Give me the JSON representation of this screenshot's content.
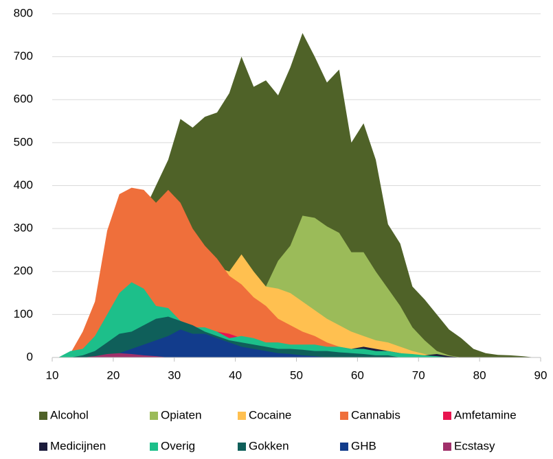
{
  "chart_data": {
    "type": "area",
    "x": [
      11,
      13,
      15,
      17,
      19,
      21,
      23,
      25,
      27,
      29,
      31,
      33,
      35,
      37,
      39,
      41,
      43,
      45,
      47,
      49,
      51,
      53,
      55,
      57,
      59,
      61,
      63,
      65,
      67,
      69,
      71,
      73,
      75,
      77,
      79,
      81,
      83,
      85,
      87,
      89
    ],
    "series": [
      {
        "name": "Alcohol",
        "color": "#4f6228",
        "values": [
          0,
          10,
          40,
          100,
          170,
          230,
          290,
          340,
          400,
          460,
          555,
          535,
          560,
          570,
          615,
          700,
          630,
          645,
          610,
          675,
          755,
          700,
          640,
          670,
          500,
          545,
          460,
          310,
          265,
          165,
          135,
          100,
          65,
          45,
          20,
          10,
          6,
          5,
          3,
          0
        ]
      },
      {
        "name": "Opiaten",
        "color": "#9bbb59",
        "values": [
          0,
          0,
          0,
          0,
          0,
          0,
          0,
          0,
          0,
          0,
          0,
          0,
          0,
          150,
          150,
          160,
          160,
          165,
          225,
          260,
          330,
          325,
          305,
          290,
          245,
          245,
          200,
          160,
          120,
          70,
          40,
          15,
          5,
          0,
          0,
          0,
          0,
          0,
          0,
          0
        ]
      },
      {
        "name": "Cocaine",
        "color": "#ffc050",
        "values": [
          0,
          0,
          0,
          0,
          0,
          80,
          100,
          110,
          120,
          130,
          140,
          150,
          250,
          210,
          200,
          240,
          200,
          165,
          160,
          150,
          130,
          110,
          90,
          75,
          60,
          50,
          40,
          35,
          25,
          15,
          8,
          3,
          0,
          0,
          0,
          0,
          0,
          0,
          0,
          0
        ]
      },
      {
        "name": "Cannabis",
        "color": "#ef6f3b",
        "values": [
          0,
          10,
          60,
          130,
          295,
          380,
          395,
          390,
          360,
          390,
          360,
          300,
          260,
          230,
          190,
          170,
          140,
          120,
          90,
          75,
          60,
          50,
          35,
          25,
          20,
          15,
          10,
          5,
          5,
          0,
          0,
          0,
          0,
          0,
          0,
          0,
          0,
          0,
          0,
          0
        ]
      },
      {
        "name": "Amfetamine",
        "color": "#e8154f",
        "values": [
          0,
          0,
          0,
          0,
          0,
          0,
          0,
          0,
          0,
          0,
          0,
          30,
          50,
          60,
          55,
          45,
          35,
          25,
          15,
          10,
          5,
          0,
          0,
          0,
          0,
          0,
          0,
          0,
          0,
          0,
          0,
          0,
          0,
          0,
          0,
          0,
          0,
          0,
          0,
          0
        ]
      },
      {
        "name": "Medicijnen",
        "color": "#1c1c3c",
        "values": [
          0,
          0,
          0,
          0,
          0,
          0,
          0,
          0,
          0,
          0,
          0,
          0,
          0,
          0,
          0,
          0,
          0,
          0,
          0,
          0,
          0,
          0,
          15,
          20,
          20,
          25,
          20,
          15,
          10,
          5,
          5,
          8,
          3,
          0,
          0,
          0,
          0,
          0,
          0,
          0
        ]
      },
      {
        "name": "Overig",
        "color": "#1dbf8a",
        "values": [
          0,
          15,
          20,
          50,
          100,
          150,
          175,
          160,
          120,
          115,
          85,
          70,
          70,
          60,
          45,
          50,
          45,
          35,
          35,
          30,
          30,
          30,
          25,
          25,
          20,
          20,
          15,
          15,
          10,
          8,
          5,
          3,
          0,
          0,
          0,
          0,
          0,
          0,
          0,
          0
        ]
      },
      {
        "name": "Gokken",
        "color": "#0f5f5a",
        "values": [
          0,
          0,
          5,
          15,
          35,
          55,
          60,
          75,
          90,
          95,
          85,
          75,
          60,
          50,
          40,
          35,
          30,
          25,
          20,
          20,
          18,
          15,
          15,
          12,
          10,
          8,
          5,
          5,
          0,
          0,
          0,
          0,
          0,
          0,
          0,
          0,
          0,
          0,
          0,
          0
        ]
      },
      {
        "name": "GHB",
        "color": "#123c8c",
        "values": [
          0,
          0,
          0,
          0,
          5,
          10,
          20,
          30,
          40,
          50,
          65,
          55,
          55,
          45,
          35,
          25,
          20,
          15,
          10,
          8,
          5,
          3,
          0,
          0,
          0,
          0,
          0,
          0,
          0,
          0,
          0,
          0,
          0,
          0,
          0,
          0,
          0,
          0,
          0,
          0
        ]
      },
      {
        "name": "Ecstasy",
        "color": "#a0306a",
        "values": [
          0,
          0,
          0,
          3,
          8,
          10,
          8,
          5,
          3,
          0,
          0,
          0,
          0,
          0,
          0,
          0,
          0,
          0,
          0,
          0,
          0,
          0,
          0,
          0,
          0,
          0,
          0,
          0,
          0,
          0,
          0,
          0,
          0,
          0,
          0,
          0,
          0,
          0,
          0,
          0
        ]
      }
    ],
    "xlim": [
      10,
      90
    ],
    "xticks": [
      10,
      20,
      30,
      40,
      50,
      60,
      70,
      80,
      90
    ],
    "ylim": [
      0,
      800
    ],
    "yticks": [
      0,
      100,
      200,
      300,
      400,
      500,
      600,
      700,
      800
    ],
    "grid": true,
    "legend": "bottom"
  }
}
